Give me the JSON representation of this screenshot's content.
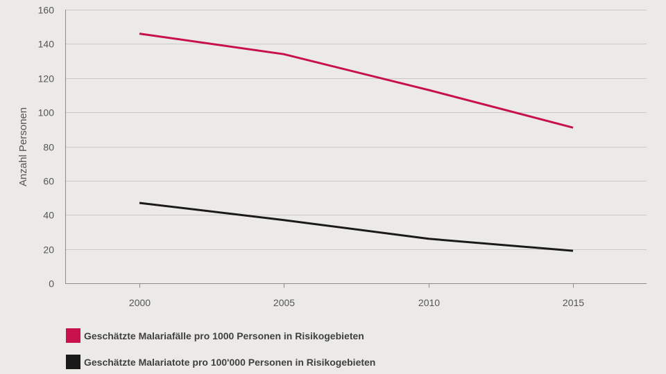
{
  "chart_data": {
    "type": "line",
    "title": "",
    "xlabel": "",
    "ylabel": "Anzahl Personen",
    "x": [
      2000,
      2005,
      2010,
      2015
    ],
    "x_tick_labels": [
      "2000",
      "2005",
      "2010",
      "2015"
    ],
    "ylim": [
      0,
      160
    ],
    "y_ticks": [
      0,
      20,
      40,
      60,
      80,
      100,
      120,
      140,
      160
    ],
    "grid": true,
    "legend_position": "bottom-left",
    "series": [
      {
        "name": "Geschätzte Malariafälle pro 1000 Personen in Risikogebieten",
        "color": "#c8104a",
        "values": [
          146,
          134,
          113,
          91
        ]
      },
      {
        "name": "Geschätzte Malariatote pro 100'000 Personen in Risikogebieten",
        "color": "#1a1a1a",
        "values": [
          47,
          37,
          26,
          19
        ]
      }
    ]
  }
}
